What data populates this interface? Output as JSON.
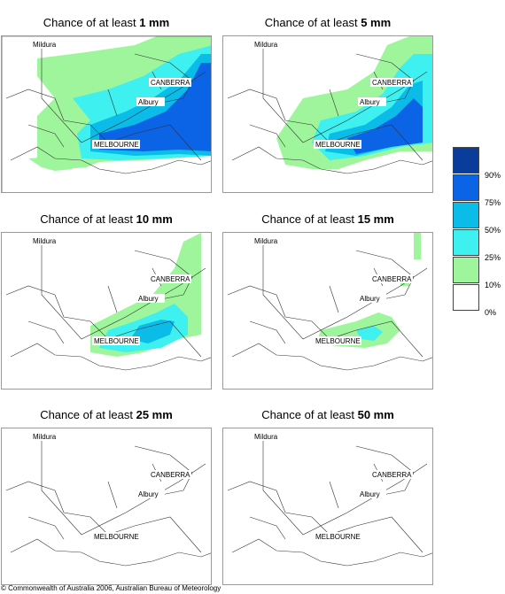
{
  "title_prefix": "Chance of at least",
  "panels": [
    {
      "amount": "1 mm"
    },
    {
      "amount": "5 mm"
    },
    {
      "amount": "10 mm"
    },
    {
      "amount": "15 mm"
    },
    {
      "amount": "25 mm"
    },
    {
      "amount": "50 mm"
    }
  ],
  "places": {
    "mildura": "Mildura",
    "canberra": "CANBERRA",
    "albury": "Albury",
    "melbourne": "MELBOURNE"
  },
  "legend": {
    "colors": [
      "#0a3c9c",
      "#0b63e6",
      "#0cbce8",
      "#3ef0f0",
      "#9ff59b",
      "#ffffff"
    ],
    "labels": [
      "90%",
      "75%",
      "50%",
      "25%",
      "10%",
      "0%"
    ]
  },
  "footer": "© Commonwealth of Australia 2006, Australian Bureau of Meteorology"
}
